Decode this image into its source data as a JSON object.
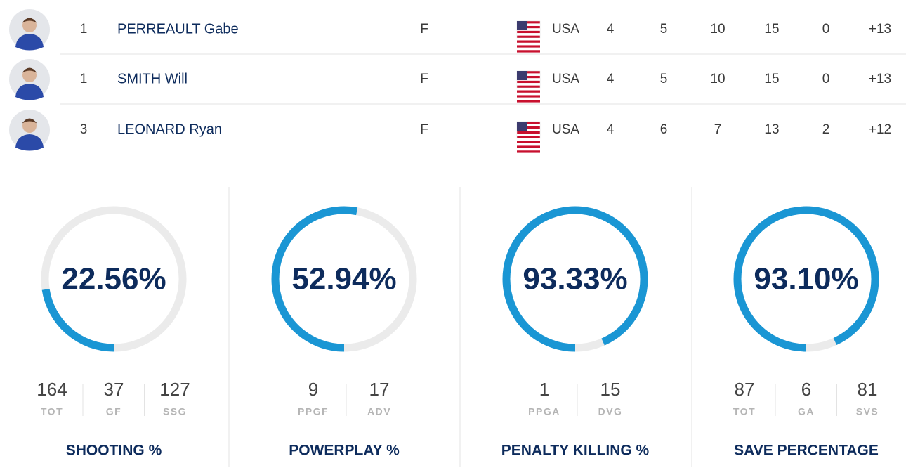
{
  "players": [
    {
      "rank": 1,
      "name": "PERREAULT Gabe",
      "position": "F",
      "country": "USA",
      "stats": [
        4,
        5,
        10,
        15,
        0,
        "+13"
      ]
    },
    {
      "rank": 1,
      "name": "SMITH Will",
      "position": "F",
      "country": "USA",
      "stats": [
        4,
        5,
        10,
        15,
        0,
        "+13"
      ]
    },
    {
      "rank": 3,
      "name": "LEONARD Ryan",
      "position": "F",
      "country": "USA",
      "stats": [
        4,
        6,
        7,
        13,
        2,
        "+12"
      ]
    }
  ],
  "gauges": [
    {
      "title": "SHOOTING %",
      "percent": {
        "value": 22.56,
        "label": "22.56%"
      },
      "stats": [
        {
          "number": 164,
          "label": "TOT"
        },
        {
          "number": 37,
          "label": "GF"
        },
        {
          "number": 127,
          "label": "SSG"
        }
      ]
    },
    {
      "title": "POWERPLAY %",
      "percent": {
        "value": 52.94,
        "label": "52.94%"
      },
      "stats": [
        {
          "number": 9,
          "label": "PPGF"
        },
        {
          "number": 17,
          "label": "ADV"
        }
      ]
    },
    {
      "title": "PENALTY KILLING %",
      "percent": {
        "value": 93.33,
        "label": "93.33%"
      },
      "stats": [
        {
          "number": 1,
          "label": "PPGA"
        },
        {
          "number": 15,
          "label": "DVG"
        }
      ]
    },
    {
      "title": "SAVE PERCENTAGE",
      "percent": {
        "value": 93.1,
        "label": "93.10%"
      },
      "stats": [
        {
          "number": 87,
          "label": "TOT"
        },
        {
          "number": 6,
          "label": "GA"
        },
        {
          "number": 81,
          "label": "SVS"
        }
      ]
    }
  ]
}
